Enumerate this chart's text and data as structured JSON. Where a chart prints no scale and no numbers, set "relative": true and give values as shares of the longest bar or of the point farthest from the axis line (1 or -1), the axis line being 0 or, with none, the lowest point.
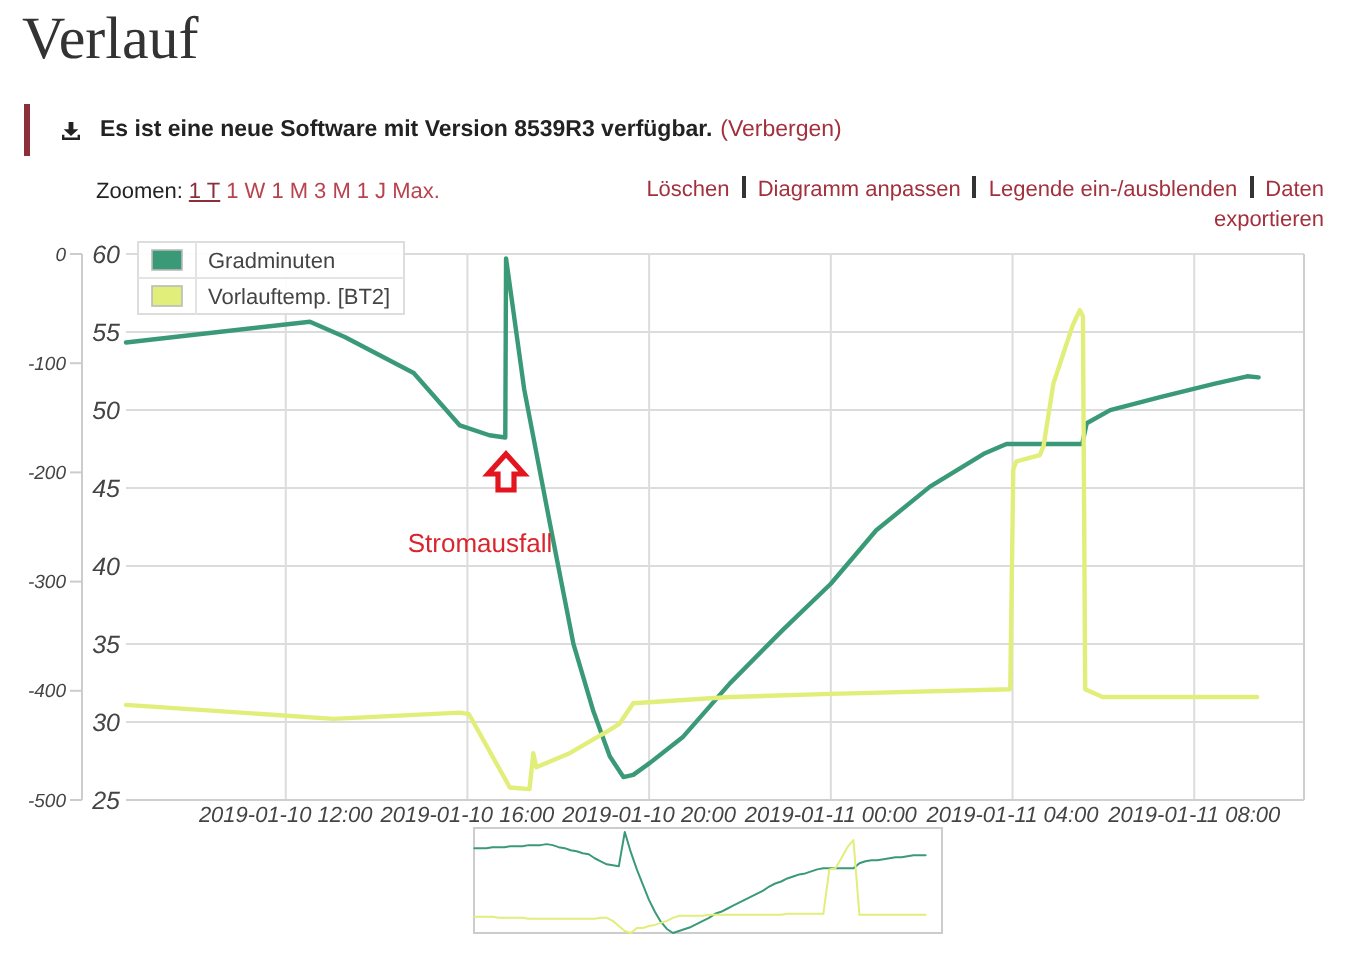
{
  "chart_data": [
    {
      "type": "line",
      "title": "Verlauf",
      "annotations": [
        "Es ist eine neue Software mit Version 8539R3 verfügbar.",
        "(Verbergen)",
        "Zoomen:",
        "1 T",
        "1 W",
        "1 M",
        "3 M",
        "1 J",
        "Max.",
        "Löschen",
        "Diagramm anpassen",
        "Legende ein-/ausblenden",
        "Daten exportieren",
        "Stromausfall"
      ],
      "xlim": [
        "2019-01-10T08:29",
        "2019-01-11T10:25"
      ],
      "xticks": [
        {
          "value": "2019-01-10T12:00",
          "label": "2019-01-10 12:00"
        },
        {
          "value": "2019-01-10T16:00",
          "label": "2019-01-10 16:00"
        },
        {
          "value": "2019-01-10T20:00",
          "label": "2019-01-10 20:00"
        },
        {
          "value": "2019-01-11T00:00",
          "label": "2019-01-11 00:00"
        },
        {
          "value": "2019-01-11T04:00",
          "label": "2019-01-11 04:00"
        },
        {
          "value": "2019-01-11T08:00",
          "label": "2019-01-11 08:00"
        }
      ],
      "ylim": [
        25,
        60
      ],
      "yticks": [
        25,
        30,
        35,
        40,
        45,
        50,
        55,
        60
      ],
      "y2lim": [
        -500,
        0
      ],
      "y2ticks": [
        -500,
        -400,
        -300,
        -200,
        -100,
        0
      ],
      "grid": true,
      "legend": "top left",
      "series": [
        {
          "name": "Gradminuten",
          "color": "#3a9a78",
          "axis": "y2",
          "x": [
            "2019-01-10T08:29",
            "2019-01-10T12:32",
            "2019-01-10T13:18",
            "2019-01-10T14:49",
            "2019-01-10T15:50",
            "2019-01-10T16:29",
            "2019-01-10T16:50",
            "2019-01-10T16:51",
            "2019-01-10T17:15",
            "2019-01-10T17:49",
            "2019-01-10T18:20",
            "2019-01-10T18:46",
            "2019-01-10T19:08",
            "2019-01-10T19:26",
            "2019-01-10T19:39",
            "2019-01-10T20:01",
            "2019-01-10T20:45",
            "2019-01-10T21:47",
            "2019-01-10T22:57",
            "2019-01-11T00:00",
            "2019-01-11T01:00",
            "2019-01-11T02:11",
            "2019-01-11T03:22",
            "2019-01-11T03:52",
            "2019-01-11T05:32",
            "2019-01-11T05:38",
            "2019-01-11T06:09",
            "2019-01-11T07:15",
            "2019-01-11T08:26",
            "2019-01-11T09:10",
            "2019-01-11T09:25"
          ],
          "values": [
            -81,
            -62,
            -76,
            -109,
            -157,
            -166,
            -168,
            -4,
            -124,
            -247,
            -357,
            -418,
            -460,
            -479,
            -477,
            -466,
            -442,
            -393,
            -344,
            -302,
            -253,
            -213,
            -183,
            -174,
            -174,
            -155,
            -143,
            -131,
            -119,
            -112,
            -113
          ]
        },
        {
          "name": "Vorlauftemp. [BT2]",
          "color": "#e2ee7a",
          "x": [
            "2019-01-10T08:29",
            "2019-01-10T13:03",
            "2019-01-10T15:50",
            "2019-01-10T16:02",
            "2019-01-10T16:56",
            "2019-01-10T17:22",
            "2019-01-10T17:27",
            "2019-01-10T17:31",
            "2019-01-10T18:15",
            "2019-01-10T19:08",
            "2019-01-10T19:21",
            "2019-01-10T19:39",
            "2019-01-10T21:47",
            "2019-01-11T00:00",
            "2019-01-11T03:57",
            "2019-01-11T04:01",
            "2019-01-11T04:05",
            "2019-01-11T04:36",
            "2019-01-11T04:41",
            "2019-01-11T04:54",
            "2019-01-11T05:20",
            "2019-01-11T05:29",
            "2019-01-11T05:33",
            "2019-01-11T05:36",
            "2019-01-11T05:59",
            "2019-01-11T09:23"
          ],
          "values": [
            31.1,
            30.2,
            30.6,
            30.5,
            25.8,
            25.7,
            28.0,
            27.1,
            28.0,
            29.5,
            29.9,
            31.2,
            31.6,
            31.8,
            32.1,
            46.2,
            46.7,
            47.1,
            47.7,
            51.7,
            55.5,
            56.4,
            56.0,
            32.1,
            31.6,
            31.6
          ]
        }
      ]
    },
    {
      "type": "line",
      "relative": true,
      "categories": [
        null,
        null,
        null,
        null,
        null,
        null,
        null,
        null,
        null,
        null,
        null,
        null,
        null,
        null,
        null,
        null,
        null,
        null,
        null,
        null,
        null,
        null,
        null,
        null,
        null,
        null,
        null,
        null,
        null,
        null,
        null,
        null,
        null,
        null,
        null,
        null,
        null,
        null,
        null,
        null,
        null,
        null,
        null,
        null,
        null,
        null,
        null,
        null,
        null,
        null,
        null,
        null,
        null,
        null,
        null,
        null,
        null,
        null,
        null,
        null,
        null,
        null,
        null,
        null,
        null,
        null,
        null,
        null,
        null,
        null,
        null,
        null,
        null,
        null,
        null,
        null
      ],
      "series": [
        {
          "color": "#3a9a78",
          "values": [
            0.84,
            0.84,
            0.84,
            0.85,
            0.85,
            0.85,
            0.86,
            0.86,
            0.86,
            0.87,
            0.87,
            0.87,
            0.88,
            0.87,
            0.85,
            0.84,
            0.82,
            0.81,
            0.79,
            0.78,
            0.74,
            0.71,
            0.68,
            0.67,
            0.66,
            1,
            0.8,
            0.63,
            0.48,
            0.33,
            0.21,
            0.11,
            0.04,
            0,
            0.02,
            0.04,
            0.06,
            0.09,
            0.12,
            0.15,
            0.19,
            0.21,
            0.24,
            0.27,
            0.3,
            0.33,
            0.36,
            0.39,
            0.42,
            0.46,
            0.49,
            0.51,
            0.54,
            0.56,
            0.58,
            0.59,
            0.61,
            0.63,
            0.64,
            0.64,
            0.64,
            0.64,
            0.64,
            0.64,
            0.69,
            0.71,
            0.72,
            0.72,
            0.73,
            0.74,
            0.75,
            0.75,
            0.76,
            0.77,
            0.77,
            0.77
          ]
        },
        {
          "color": "#e2ee7a",
          "values": [
            0.16,
            0.16,
            0.16,
            0.16,
            0.15,
            0.15,
            0.15,
            0.15,
            0.15,
            0.14,
            0.14,
            0.14,
            0.14,
            0.14,
            0.14,
            0.14,
            0.14,
            0.14,
            0.14,
            0.14,
            0.14,
            0.15,
            0.15,
            0.12,
            0.07,
            0.02,
            0,
            0.05,
            0.05,
            0.07,
            0.08,
            0.1,
            0.12,
            0.15,
            0.17,
            0.17,
            0.17,
            0.17,
            0.17,
            0.18,
            0.18,
            0.18,
            0.18,
            0.18,
            0.18,
            0.18,
            0.18,
            0.18,
            0.18,
            0.18,
            0.18,
            0.18,
            0.19,
            0.19,
            0.19,
            0.19,
            0.19,
            0.19,
            0.19,
            0.63,
            0.64,
            0.74,
            0.85,
            0.92,
            0.18,
            0.18,
            0.18,
            0.18,
            0.18,
            0.18,
            0.18,
            0.18,
            0.18,
            0.18,
            0.18,
            0.18
          ]
        }
      ]
    }
  ]
}
